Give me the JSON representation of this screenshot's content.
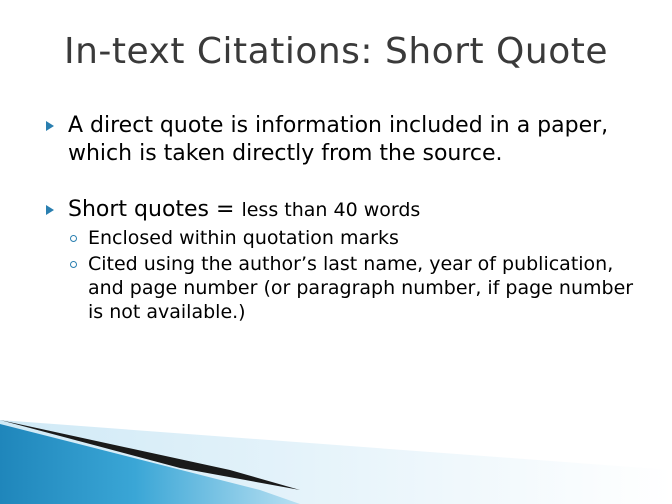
{
  "slide": {
    "title": "In-text Citations: Short Quote",
    "bullets": [
      {
        "pre": "A ",
        "strong": "direct quote",
        "post": " is information included in a paper, which is taken directly from the source."
      },
      {
        "strong": "Short quotes",
        "middle": " = ",
        "post": "less than 40 words",
        "subitems": [
          {
            "text": "Enclosed within quotation marks"
          },
          {
            "pre": "Cited using the ",
            "strong": "author’s last name, year of publication, and page number",
            "post": " (or paragraph number, if page number is not available.)"
          }
        ]
      }
    ]
  },
  "colors": {
    "accent": "#2a7fb0",
    "title": "#3a3a3a",
    "deco_dark": "#1a1a1a",
    "deco_blue": "#2f93c4",
    "deco_light": "#a9d7ee"
  },
  "icons": {
    "bullet": "triangle-arrow-icon",
    "sub_bullet": "ring-icon"
  }
}
